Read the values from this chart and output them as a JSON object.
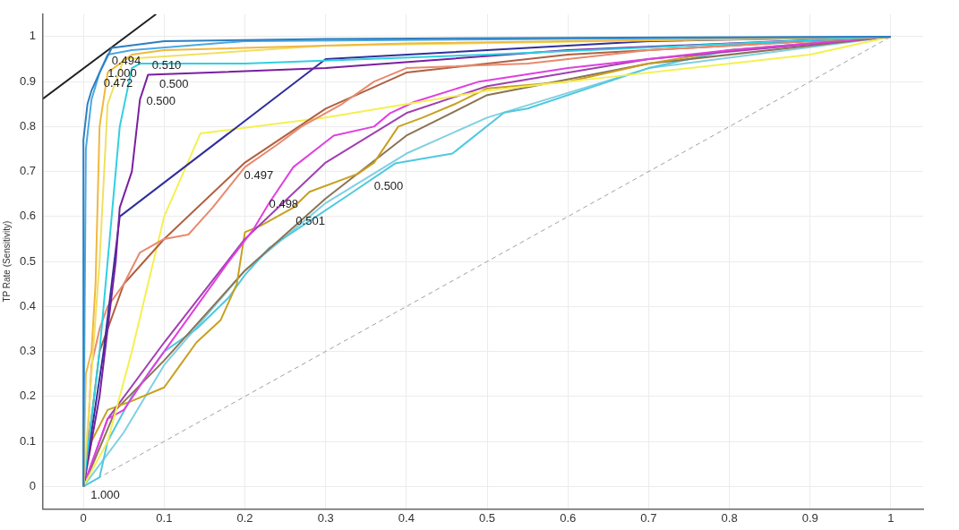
{
  "chart_data": {
    "type": "line",
    "ylabel": "TP Rate (Sensitivity)",
    "xlim": [
      -0.05,
      1.04
    ],
    "ylim": [
      -0.05,
      1.05
    ],
    "xticks": [
      0,
      0.1,
      0.2,
      0.3,
      0.4,
      0.5,
      0.6,
      0.7,
      0.8,
      0.9,
      1
    ],
    "yticks": [
      0,
      0.1,
      0.2,
      0.3,
      0.4,
      0.5,
      0.6,
      0.7,
      0.8,
      0.9,
      1
    ],
    "grid": true,
    "legend": false,
    "marker": "none",
    "line_style": "solid",
    "series": [
      {
        "color": "#2e7fc0",
        "x": [
          0,
          0,
          0.005,
          0.01,
          0.02,
          0.035,
          0.1,
          0.3,
          1
        ],
        "values": [
          0,
          0.77,
          0.85,
          0.88,
          0.92,
          0.975,
          0.99,
          0.995,
          1
        ]
      },
      {
        "color": "#4aa8e0",
        "x": [
          0,
          0.003,
          0.01,
          0.02,
          0.03,
          0.06,
          0.2,
          1
        ],
        "values": [
          0,
          0.75,
          0.86,
          0.92,
          0.96,
          0.97,
          0.99,
          1
        ]
      },
      {
        "color": "#f0b840",
        "x": [
          0,
          0.003,
          0.01,
          0.015,
          0.02,
          0.03,
          0.06,
          0.1,
          0.4,
          1
        ],
        "values": [
          0,
          0.25,
          0.3,
          0.45,
          0.8,
          0.92,
          0.96,
          0.97,
          0.985,
          1
        ]
      },
      {
        "color": "#f0e060",
        "x": [
          0,
          0.02,
          0.03,
          0.05,
          0.3,
          1
        ],
        "values": [
          0,
          0.5,
          0.85,
          0.95,
          0.98,
          1
        ]
      },
      {
        "color": "#30d0e0",
        "x": [
          0,
          0.02,
          0.03,
          0.045,
          0.06,
          0.07,
          0.2,
          0.5,
          1
        ],
        "values": [
          0,
          0.3,
          0.5,
          0.8,
          0.93,
          0.94,
          0.94,
          0.96,
          1
        ]
      },
      {
        "color": "#7a1fa0",
        "x": [
          0,
          0.02,
          0.04,
          0.045,
          0.06,
          0.07,
          0.08,
          0.3,
          0.6,
          1
        ],
        "values": [
          0,
          0.2,
          0.5,
          0.62,
          0.7,
          0.86,
          0.915,
          0.93,
          0.97,
          1
        ]
      },
      {
        "color": "#30309a",
        "x": [
          0,
          0.025,
          0.045,
          0.3,
          0.7,
          1
        ],
        "values": [
          0,
          0.3,
          0.6,
          0.95,
          0.99,
          1
        ]
      },
      {
        "color": "#e88a6e",
        "x": [
          0,
          0.005,
          0.01,
          0.02,
          0.03,
          0.05,
          0.07,
          0.1,
          0.13,
          0.16,
          0.2,
          0.24,
          0.27,
          0.32,
          0.36,
          0.4,
          0.55,
          0.7,
          0.9,
          1
        ],
        "values": [
          0,
          0.1,
          0.27,
          0.35,
          0.4,
          0.45,
          0.52,
          0.55,
          0.56,
          0.62,
          0.71,
          0.76,
          0.8,
          0.85,
          0.9,
          0.93,
          0.94,
          0.97,
          0.99,
          1
        ]
      },
      {
        "color": "#b06040",
        "x": [
          0,
          0.02,
          0.05,
          0.1,
          0.2,
          0.3,
          0.4,
          0.6,
          1
        ],
        "values": [
          0,
          0.3,
          0.45,
          0.55,
          0.72,
          0.84,
          0.92,
          0.96,
          1
        ]
      },
      {
        "color": "#f5f050",
        "x": [
          0,
          0.03,
          0.06,
          0.1,
          0.145,
          0.3,
          0.5,
          0.65,
          0.9,
          1
        ],
        "values": [
          0,
          0.1,
          0.3,
          0.6,
          0.785,
          0.82,
          0.88,
          0.91,
          0.96,
          1
        ]
      },
      {
        "color": "#e040e0",
        "x": [
          0,
          0.01,
          0.03,
          0.05,
          0.08,
          0.1,
          0.14,
          0.18,
          0.21,
          0.23,
          0.26,
          0.31,
          0.36,
          0.38,
          0.41,
          0.49,
          0.6,
          0.8,
          1
        ],
        "values": [
          0,
          0.05,
          0.15,
          0.17,
          0.25,
          0.3,
          0.4,
          0.5,
          0.57,
          0.63,
          0.71,
          0.78,
          0.8,
          0.83,
          0.855,
          0.9,
          0.93,
          0.97,
          1
        ]
      },
      {
        "color": "#a040b0",
        "x": [
          0,
          0.03,
          0.1,
          0.2,
          0.3,
          0.4,
          0.5,
          0.7,
          1
        ],
        "values": [
          0,
          0.15,
          0.32,
          0.55,
          0.72,
          0.83,
          0.89,
          0.95,
          1
        ]
      },
      {
        "color": "#c8a020",
        "x": [
          0,
          0.01,
          0.03,
          0.06,
          0.1,
          0.12,
          0.14,
          0.17,
          0.19,
          0.2,
          0.22,
          0.26,
          0.28,
          0.34,
          0.36,
          0.39,
          0.42,
          0.46,
          0.5,
          0.6,
          0.7,
          0.8,
          1
        ],
        "values": [
          0,
          0.1,
          0.17,
          0.19,
          0.22,
          0.27,
          0.32,
          0.37,
          0.45,
          0.565,
          0.58,
          0.62,
          0.655,
          0.695,
          0.72,
          0.8,
          0.82,
          0.85,
          0.885,
          0.9,
          0.94,
          0.97,
          1
        ]
      },
      {
        "color": "#8b7355",
        "x": [
          0,
          0.04,
          0.1,
          0.2,
          0.3,
          0.4,
          0.5,
          0.7,
          1
        ],
        "values": [
          0,
          0.17,
          0.28,
          0.48,
          0.64,
          0.78,
          0.87,
          0.94,
          1
        ]
      },
      {
        "color": "#50c8e0",
        "x": [
          0,
          0.02,
          0.03,
          0.06,
          0.1,
          0.14,
          0.18,
          0.2,
          0.23,
          0.28,
          0.33,
          0.386,
          0.457,
          0.521,
          0.55,
          0.7,
          0.8,
          1
        ],
        "values": [
          0,
          0.02,
          0.1,
          0.2,
          0.3,
          0.35,
          0.42,
          0.47,
          0.53,
          0.59,
          0.65,
          0.718,
          0.74,
          0.831,
          0.84,
          0.93,
          0.97,
          1
        ]
      },
      {
        "color": "#80d0e0",
        "x": [
          0,
          0.05,
          0.1,
          0.2,
          0.3,
          0.4,
          0.5,
          0.7,
          1
        ],
        "values": [
          0,
          0.12,
          0.27,
          0.48,
          0.63,
          0.74,
          0.82,
          0.93,
          1
        ]
      },
      {
        "color": "#a0a0a0",
        "line_style": "dashed",
        "x": [
          0,
          1
        ],
        "values": [
          0,
          1
        ]
      },
      {
        "color": "#202020",
        "x": [
          -0.05,
          0.09
        ],
        "values": [
          0.862,
          1.05
        ]
      }
    ],
    "annotations": [
      "0.494",
      "0.510",
      "1.000",
      "0.472",
      "0.500",
      "0.500",
      "0.497",
      "0.498",
      "0.501",
      "0.500",
      "1.000"
    ]
  }
}
